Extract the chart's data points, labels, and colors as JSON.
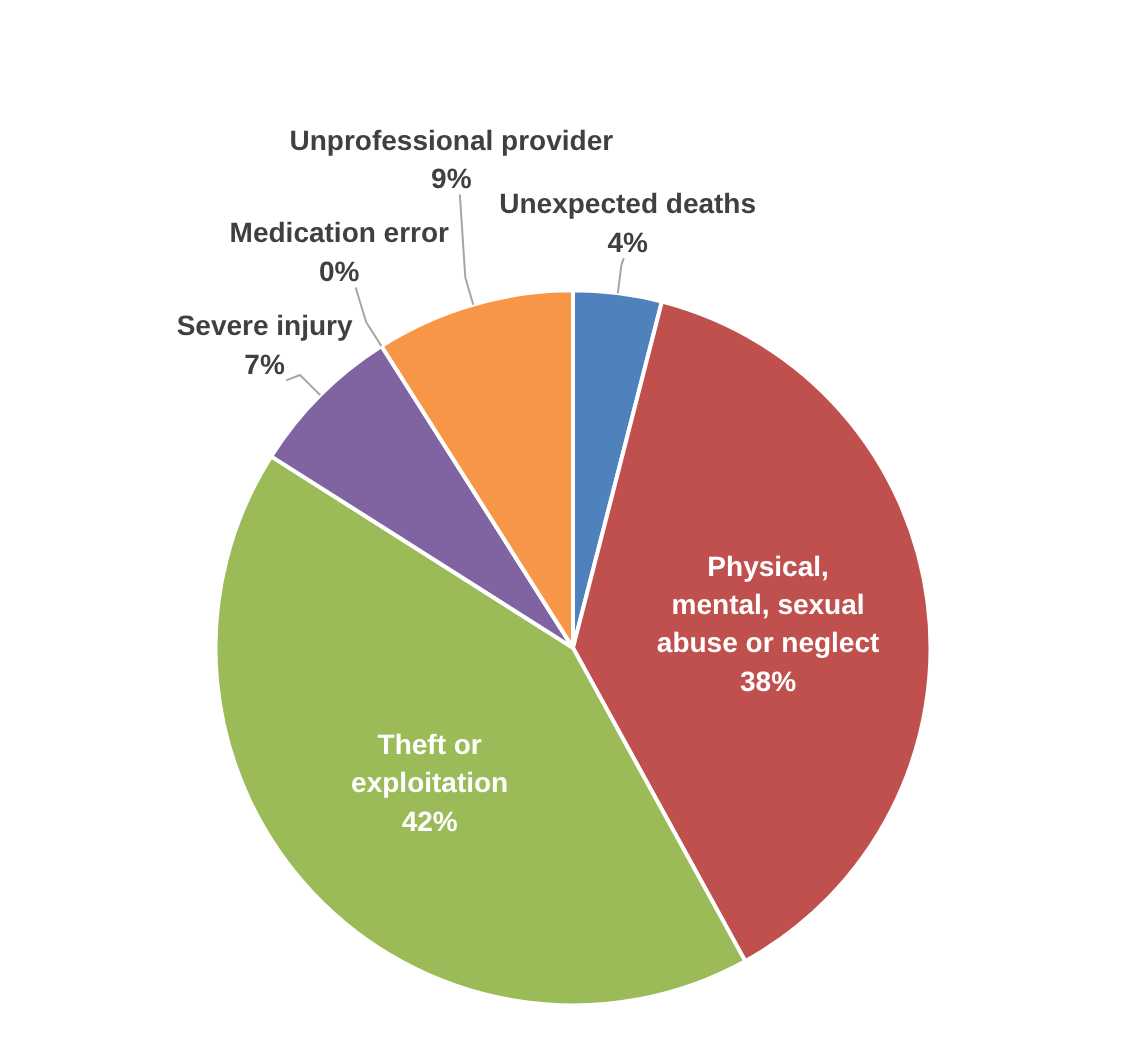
{
  "chart_data": {
    "type": "pie",
    "categories": [
      "Unexpected deaths",
      "Physical, mental, sexual abuse or neglect",
      "Theft or exploitation",
      "Severe injury",
      "Medication error",
      "Unprofessional provider"
    ],
    "values": [
      4,
      38,
      42,
      7,
      0,
      9
    ],
    "colors": [
      "#4f81bd",
      "#c0504d",
      "#9bbb59",
      "#8064a2",
      "#4bacc6",
      "#f79646"
    ],
    "value_labels": [
      "4%",
      "38%",
      "42%",
      "7%",
      "0%",
      "9%"
    ]
  }
}
